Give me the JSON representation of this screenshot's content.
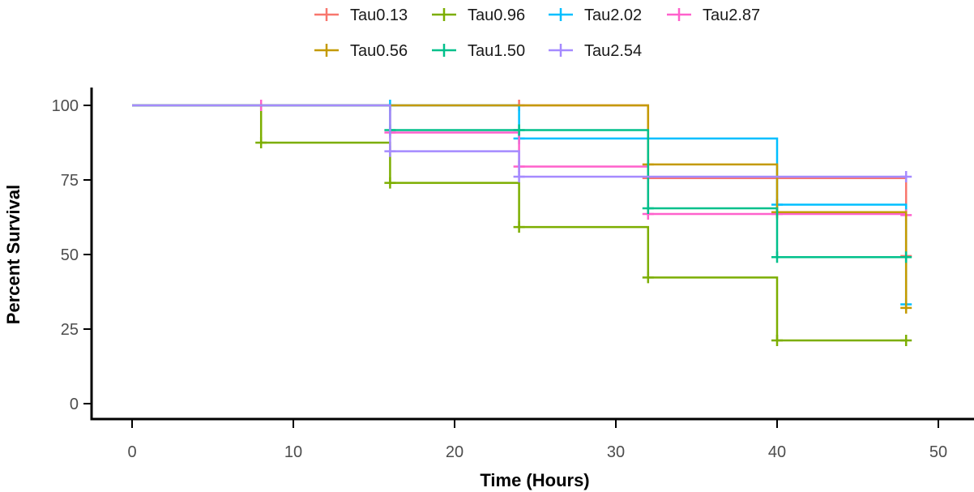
{
  "chart_data": {
    "type": "line",
    "step": true,
    "xlabel": "Time (Hours)",
    "ylabel": "Percent Survival",
    "xlim": [
      0,
      50
    ],
    "ylim": [
      0,
      100
    ],
    "xticks": [
      0,
      10,
      20,
      30,
      40,
      50
    ],
    "yticks": [
      0,
      25,
      50,
      75,
      100
    ],
    "grid": false,
    "legend_position": "top",
    "series": [
      {
        "name": "Tau0.13",
        "color": "#F8766D",
        "x": [
          0,
          24,
          32,
          48
        ],
        "values": [
          100,
          100,
          75.6,
          49.5
        ],
        "censor_x": [
          24,
          32,
          48
        ],
        "censor_values": [
          100,
          75.6,
          49.5
        ]
      },
      {
        "name": "Tau0.96",
        "color": "#7CAE00",
        "x": [
          0,
          8,
          16,
          24,
          32,
          40,
          48
        ],
        "values": [
          100,
          87.5,
          74,
          59.2,
          42.3,
          21.2,
          21.2
        ],
        "censor_x": [
          8,
          16,
          24,
          32,
          40,
          48
        ],
        "censor_values": [
          87.5,
          74,
          59.2,
          42.3,
          21.2,
          21.2
        ]
      },
      {
        "name": "Tau2.02",
        "color": "#00BFFF",
        "x": [
          0,
          16,
          24,
          40,
          48
        ],
        "values": [
          100,
          100,
          88.9,
          66.7,
          33.3
        ],
        "censor_x": [
          16,
          24,
          40,
          48
        ],
        "censor_values": [
          100,
          88.9,
          66.7,
          33.3
        ]
      },
      {
        "name": "Tau2.87",
        "color": "#FF61CC",
        "x": [
          0,
          16,
          24,
          32,
          48
        ],
        "values": [
          100,
          90.9,
          79.5,
          63.6,
          63.2
        ],
        "censor_x": [
          8,
          16,
          24,
          32,
          40,
          48
        ],
        "censor_values": [
          100,
          90.9,
          79.5,
          63.6,
          63.6,
          63.2
        ]
      },
      {
        "name": "Tau0.56",
        "color": "#C49A00",
        "x": [
          0,
          32,
          40,
          48
        ],
        "values": [
          100,
          80.2,
          64.2,
          32.1
        ],
        "censor_x": [
          32,
          40,
          48
        ],
        "censor_values": [
          80.2,
          64.2,
          32.1
        ]
      },
      {
        "name": "Tau1.50",
        "color": "#00C08B",
        "x": [
          0,
          16,
          32,
          40,
          48
        ],
        "values": [
          100,
          91.7,
          65.5,
          49.1,
          49.1
        ],
        "censor_x": [
          16,
          24,
          32,
          40,
          48
        ],
        "censor_values": [
          91.7,
          91.7,
          65.5,
          49.1,
          49.1
        ]
      },
      {
        "name": "Tau2.54",
        "color": "#A58AFF",
        "x": [
          0,
          16,
          24,
          48
        ],
        "values": [
          100,
          84.6,
          76.1,
          76.1
        ],
        "censor_x": [
          16,
          24,
          48
        ],
        "censor_values": [
          84.6,
          76.1,
          76.1
        ]
      }
    ]
  }
}
